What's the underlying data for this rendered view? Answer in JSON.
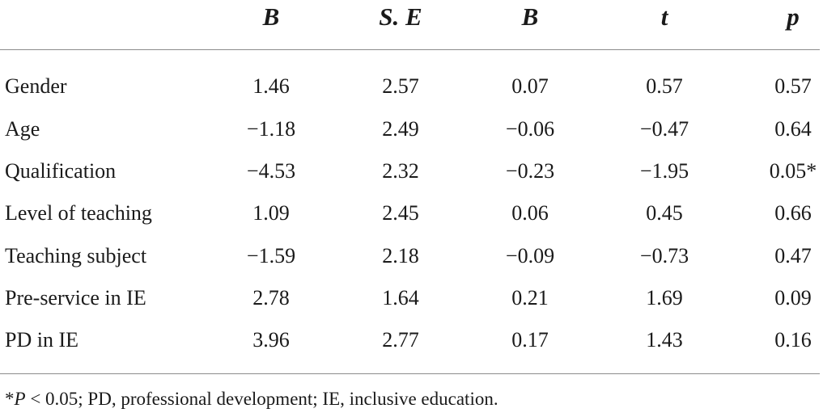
{
  "headers": [
    "B",
    "S. E",
    "B",
    "t",
    "p"
  ],
  "rows": [
    {
      "label": "Gender",
      "values": [
        "1.46",
        "2.57",
        "0.07",
        "0.57",
        "0.57"
      ]
    },
    {
      "label": "Age",
      "values": [
        "−1.18",
        "2.49",
        "−0.06",
        "−0.47",
        "0.64"
      ]
    },
    {
      "label": "Qualification",
      "values": [
        "−4.53",
        "2.32",
        "−0.23",
        "−1.95",
        "0.05*"
      ]
    },
    {
      "label": "Level of teaching",
      "values": [
        "1.09",
        "2.45",
        "0.06",
        "0.45",
        "0.66"
      ]
    },
    {
      "label": "Teaching subject",
      "values": [
        "−1.59",
        "2.18",
        "−0.09",
        "−0.73",
        "0.47"
      ]
    },
    {
      "label": "Pre-service in IE",
      "values": [
        "2.78",
        "1.64",
        "0.21",
        "1.69",
        "0.09"
      ]
    },
    {
      "label": "PD in IE",
      "values": [
        "3.96",
        "2.77",
        "0.17",
        "1.43",
        "0.16"
      ]
    }
  ],
  "footnote": {
    "star": "*",
    "p_symbol": "P",
    "rest": " < 0.05; PD, professional development; IE, inclusive education."
  }
}
